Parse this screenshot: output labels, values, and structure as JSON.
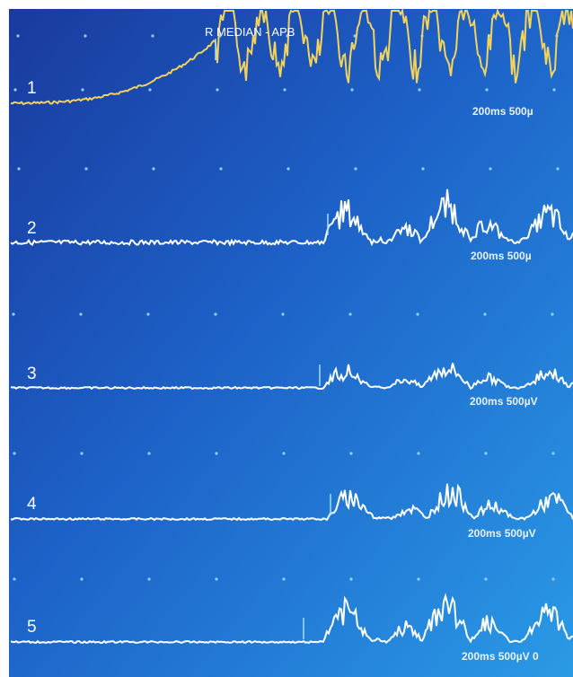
{
  "header": {
    "title": "R MEDIAN - APB"
  },
  "traces": [
    {
      "label": "1",
      "scale": "200ms 500µ"
    },
    {
      "label": "2",
      "scale": "200ms 500µ"
    },
    {
      "label": "3",
      "scale": "200ms 500µV"
    },
    {
      "label": "4",
      "scale": "200ms 500µV"
    },
    {
      "label": "5",
      "scale": "200ms 500µV 0"
    }
  ]
}
